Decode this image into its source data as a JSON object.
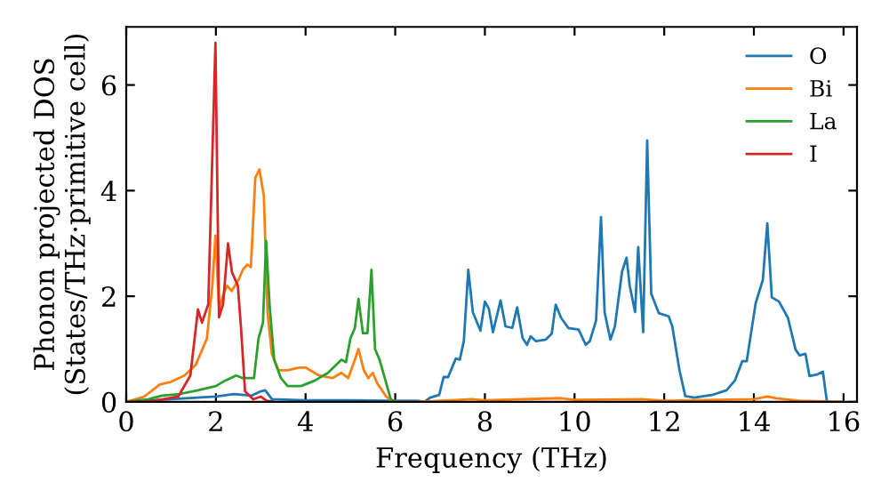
{
  "chart_data": {
    "type": "line",
    "xlabel": "Frequency (THz)",
    "ylabel": "Phonon projected DOS\n(States/THz·primitive cell)",
    "xlim": [
      0,
      16.3
    ],
    "ylim": [
      0,
      7.1
    ],
    "xticks": [
      0,
      2,
      4,
      6,
      8,
      10,
      12,
      14,
      16
    ],
    "yticks": [
      0,
      2,
      4,
      6
    ],
    "grid": false,
    "legend": "top right",
    "marker": "none",
    "line_style": "solid",
    "series": [
      {
        "name": "O",
        "color": "#1f77b4",
        "x": [
          0,
          1,
          2,
          2.4,
          2.8,
          3.0,
          3.1,
          3.25,
          4,
          5,
          5.9,
          6.5,
          6.65,
          6.78,
          6.98,
          7.08,
          7.18,
          7.35,
          7.44,
          7.53,
          7.63,
          7.73,
          7.9,
          8.0,
          8.09,
          8.18,
          8.35,
          8.46,
          8.61,
          8.72,
          8.84,
          8.94,
          9.02,
          9.14,
          9.36,
          9.49,
          9.58,
          9.7,
          9.86,
          10.09,
          10.25,
          10.34,
          10.48,
          10.59,
          10.67,
          10.8,
          10.9,
          11.06,
          11.16,
          11.23,
          11.35,
          11.42,
          11.53,
          11.62,
          11.71,
          11.88,
          12.1,
          12.18,
          12.34,
          12.47,
          12.67,
          13.06,
          13.39,
          13.58,
          13.74,
          13.84,
          14.04,
          14.2,
          14.3,
          14.4,
          14.56,
          14.76,
          14.93,
          15.02,
          15.15,
          15.24,
          15.41,
          15.54,
          15.63
        ],
        "values": [
          0,
          0.05,
          0.1,
          0.15,
          0.12,
          0.2,
          0.22,
          0.05,
          0.03,
          0.03,
          0.02,
          0.02,
          0,
          0.08,
          0.13,
          0.47,
          0.47,
          0.82,
          0.8,
          1.15,
          2.5,
          1.7,
          1.35,
          1.9,
          1.76,
          1.32,
          1.92,
          1.43,
          1.4,
          1.79,
          1.21,
          1.08,
          1.24,
          1.15,
          1.18,
          1.29,
          1.84,
          1.59,
          1.4,
          1.37,
          1.08,
          1.15,
          1.54,
          3.5,
          1.7,
          1.18,
          1.43,
          2.47,
          2.73,
          2.2,
          1.7,
          2.93,
          1.32,
          4.95,
          2.05,
          1.68,
          1.62,
          1.43,
          0.6,
          0.11,
          0.08,
          0.13,
          0.22,
          0.41,
          0.77,
          0.77,
          1.87,
          2.31,
          3.38,
          1.98,
          1.9,
          1.59,
          0.99,
          0.88,
          0.91,
          0.49,
          0.52,
          0.57,
          0
        ]
      },
      {
        "name": "Bi",
        "color": "#ff7f0e",
        "x": [
          0,
          0.4,
          0.75,
          1.0,
          1.3,
          1.55,
          1.8,
          1.92,
          1.99,
          2.07,
          2.15,
          2.25,
          2.35,
          2.5,
          2.6,
          2.7,
          2.78,
          2.88,
          2.97,
          3.07,
          3.15,
          3.25,
          3.4,
          3.6,
          3.85,
          4.0,
          4.3,
          4.6,
          4.8,
          4.95,
          5.1,
          5.18,
          5.3,
          5.4,
          5.5,
          5.6,
          5.8,
          5.95,
          6.5,
          7.7,
          8.0,
          9.7,
          10.0,
          11.5,
          12.0,
          14.0,
          14.3,
          14.5,
          15.0,
          16.0
        ],
        "values": [
          0,
          0.1,
          0.33,
          0.38,
          0.5,
          0.7,
          1.2,
          2.2,
          3.15,
          1.75,
          2.0,
          2.2,
          2.1,
          2.3,
          2.5,
          2.6,
          2.55,
          4.25,
          4.4,
          3.9,
          1.7,
          0.9,
          0.6,
          0.6,
          0.65,
          0.65,
          0.5,
          0.45,
          0.55,
          0.45,
          0.8,
          1.0,
          0.6,
          0.45,
          0.55,
          0.35,
          0.1,
          0,
          0,
          0.05,
          0.03,
          0.07,
          0.04,
          0.05,
          0.02,
          0.05,
          0.1,
          0.07,
          0.02,
          0
        ]
      },
      {
        "name": "La",
        "color": "#2ca02c",
        "x": [
          0,
          0.5,
          0.8,
          1.2,
          1.6,
          2.0,
          2.2,
          2.45,
          2.6,
          2.85,
          2.95,
          3.05,
          3.12,
          3.2,
          3.3,
          3.45,
          3.6,
          3.9,
          4.2,
          4.5,
          4.8,
          4.9,
          5.0,
          5.1,
          5.18,
          5.28,
          5.38,
          5.47,
          5.55,
          5.65,
          5.75,
          5.9,
          6.0
        ],
        "values": [
          0,
          0.05,
          0.12,
          0.15,
          0.22,
          0.3,
          0.4,
          0.5,
          0.45,
          0.45,
          1.2,
          1.5,
          3.05,
          1.8,
          0.8,
          0.45,
          0.3,
          0.3,
          0.4,
          0.55,
          0.8,
          0.75,
          1.2,
          1.4,
          1.95,
          1.3,
          1.3,
          2.5,
          1.0,
          0.8,
          0.5,
          0.05,
          0
        ]
      },
      {
        "name": "I",
        "color": "#d62728",
        "x": [
          0,
          0.3,
          0.63,
          1.16,
          1.43,
          1.6,
          1.69,
          1.83,
          1.99,
          2.07,
          2.16,
          2.27,
          2.36,
          2.49,
          2.56,
          2.65,
          2.83,
          3.0,
          3.13,
          3.3
        ],
        "values": [
          0,
          0,
          0.02,
          0.1,
          0.5,
          1.75,
          1.5,
          1.85,
          6.8,
          1.6,
          1.85,
          3.0,
          2.45,
          2.2,
          1.4,
          0.2,
          0.05,
          0.1,
          0.02,
          0
        ]
      }
    ]
  }
}
